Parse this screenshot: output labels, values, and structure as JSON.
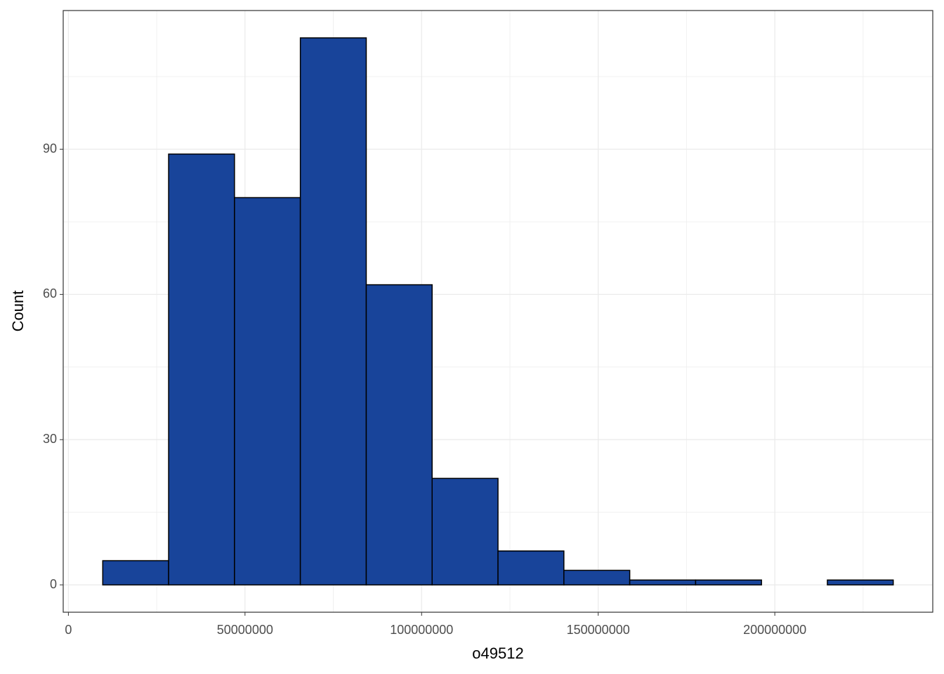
{
  "chart_data": {
    "type": "histogram",
    "x_label": "o49512",
    "y_label": "Count",
    "bins": [
      9720000,
      28370000,
      47020000,
      65670000,
      84330000,
      102980000,
      121630000,
      140280000,
      158930000,
      177580000,
      196230000,
      214880000,
      233530000
    ],
    "counts": [
      5,
      89,
      80,
      113,
      62,
      22,
      7,
      3,
      1,
      1,
      0,
      1
    ],
    "color": "#18449a",
    "xlim": [
      -1470000,
      244720000
    ],
    "ylim": [
      -5.65,
      118.65
    ],
    "xticks": [
      0,
      50000000,
      100000000,
      150000000,
      200000000
    ],
    "yticks": [
      0,
      30,
      60,
      90
    ],
    "minor_xticks": [
      25000000,
      75000000,
      125000000,
      175000000,
      225000000
    ],
    "minor_yticks": [
      15,
      45,
      75,
      105
    ],
    "grid": true
  }
}
